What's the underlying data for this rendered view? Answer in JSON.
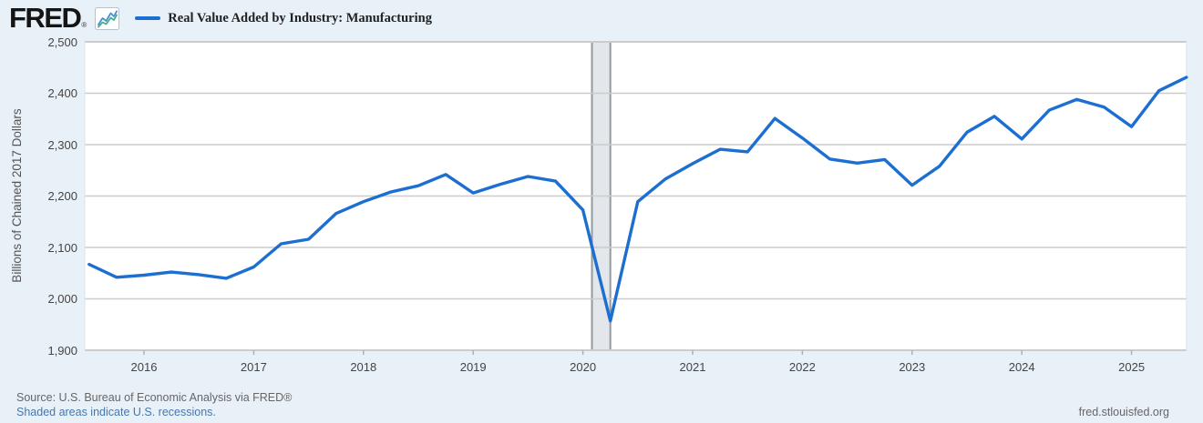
{
  "header": {
    "logo_text": "FRED",
    "logo_reg": "®",
    "legend_label": "Real Value Added by Industry: Manufacturing"
  },
  "chart_data": {
    "type": "line",
    "title": "Real Value Added by Industry: Manufacturing",
    "ylabel": "Billions of Chained 2017 Dollars",
    "xlabel": "",
    "frequency": "Quarterly",
    "ylim": [
      1900,
      2500
    ],
    "ytick_step": 100,
    "ytick_labels": [
      "2,500",
      "2,400",
      "2,300",
      "2,200",
      "2,100",
      "2,000",
      "1,900"
    ],
    "xtick_labels": [
      "2016",
      "2017",
      "2018",
      "2019",
      "2020",
      "2021",
      "2022",
      "2023",
      "2024",
      "2025"
    ],
    "grid": "horizontal",
    "legend_position": "top-left",
    "line_color": "#1c6fd1",
    "quarters": [
      "2015Q3",
      "2015Q4",
      "2016Q1",
      "2016Q2",
      "2016Q3",
      "2016Q4",
      "2017Q1",
      "2017Q2",
      "2017Q3",
      "2017Q4",
      "2018Q1",
      "2018Q2",
      "2018Q3",
      "2018Q4",
      "2019Q1",
      "2019Q2",
      "2019Q3",
      "2019Q4",
      "2020Q1",
      "2020Q2",
      "2020Q3",
      "2020Q4",
      "2021Q1",
      "2021Q2",
      "2021Q3",
      "2021Q4",
      "2022Q1",
      "2022Q2",
      "2022Q3",
      "2022Q4",
      "2023Q1",
      "2023Q2",
      "2023Q3",
      "2023Q4",
      "2024Q1",
      "2024Q2",
      "2024Q3",
      "2024Q4",
      "2025Q1",
      "2025Q2",
      "2025Q3"
    ],
    "values": [
      2067,
      2042,
      2046,
      2052,
      2047,
      2040,
      2062,
      2107,
      2116,
      2166,
      2189,
      2208,
      2220,
      2242,
      2206,
      2223,
      2238,
      2229,
      2173,
      1957,
      2189,
      2233,
      2263,
      2291,
      2286,
      2351,
      2313,
      2272,
      2264,
      2271,
      2221,
      2258,
      2324,
      2355,
      2311,
      2367,
      2388,
      2373,
      2335,
      2405,
      2431
    ],
    "recession_bands": [
      {
        "start": "2020-02-01",
        "end": "2020-04-01",
        "start_q_index": 18.33,
        "end_q_index": 19
      }
    ]
  },
  "footer": {
    "source_line": "Source: U.S. Bureau of Economic Analysis via FRED®",
    "recession_note": "Shaded areas indicate U.S. recessions.",
    "site_link": "fred.stlouisfed.org"
  },
  "colors": {
    "page_bg": "#e8f0f8",
    "plot_bg": "#ffffff",
    "gridline": "#cccccc",
    "recession_fill": "#e3e7eb",
    "recession_edge": "#959aa0",
    "tick": "#aab3bb",
    "line": "#1c6fd1",
    "axis_text": "#444444",
    "source_text": "#666666",
    "link_text": "#4678ae"
  }
}
